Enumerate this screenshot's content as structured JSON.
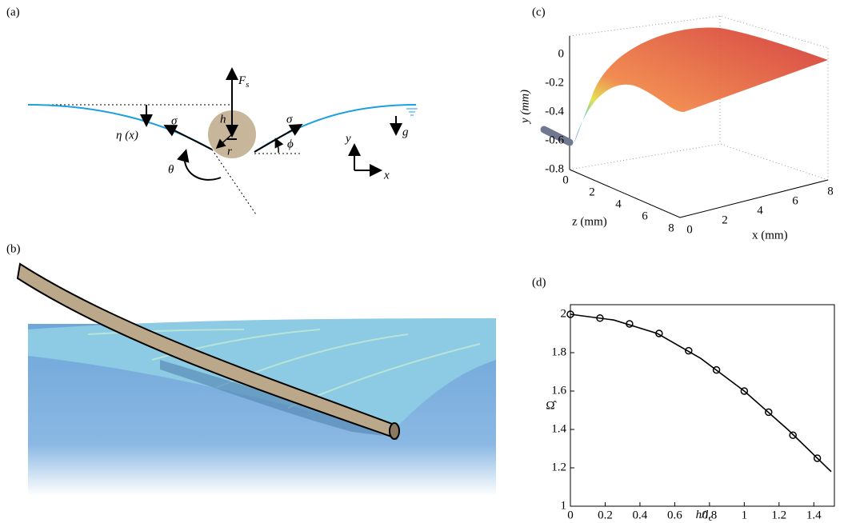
{
  "panels": {
    "a": {
      "label": "(a)",
      "force": "F",
      "force_sub": "s",
      "depth": "h",
      "radius": "r",
      "tension_left": "σ",
      "tension_right": "σ",
      "profile": "η (x)",
      "angle_phi": "ϕ",
      "angle_theta": "θ",
      "axis_y": "y",
      "axis_x": "x",
      "gravity": "g"
    },
    "b": {
      "label": "(b)"
    },
    "c": {
      "label": "(c)",
      "y_label": "y (mm)",
      "z_label": "z (mm)",
      "x_label": "x (mm)",
      "y_ticks": [
        0,
        -0.2,
        -0.4,
        -0.6,
        -0.8
      ],
      "z_ticks": [
        0,
        2,
        4,
        6,
        8
      ],
      "x_ticks": [
        0,
        2,
        4,
        6,
        8
      ]
    },
    "d": {
      "label": "(d)"
    }
  },
  "chart_data": {
    "type": "line",
    "ylabel": "Ω̂",
    "xlabel": "h/l",
    "xlabel_sub": "c",
    "xlim": [
      0,
      1.5
    ],
    "ylim": [
      1,
      2.05
    ],
    "xticks": [
      0,
      0.2,
      0.4,
      0.6,
      0.8,
      1,
      1.2,
      1.4
    ],
    "yticks": [
      1,
      1.2,
      1.4,
      1.6,
      1.8,
      2
    ],
    "series": [
      {
        "style": "line",
        "color": "#000000",
        "x": [
          0,
          0.25,
          0.5,
          0.75,
          1.0,
          1.25,
          1.5
        ],
        "values": [
          2.0,
          1.97,
          1.9,
          1.77,
          1.6,
          1.4,
          1.18
        ]
      },
      {
        "style": "markers",
        "color": "#000000",
        "x": [
          0,
          0.17,
          0.34,
          0.51,
          0.68,
          0.84,
          1.0,
          1.14,
          1.28,
          1.42
        ],
        "values": [
          2.0,
          1.98,
          1.95,
          1.9,
          1.81,
          1.71,
          1.6,
          1.49,
          1.37,
          1.25
        ]
      }
    ]
  }
}
